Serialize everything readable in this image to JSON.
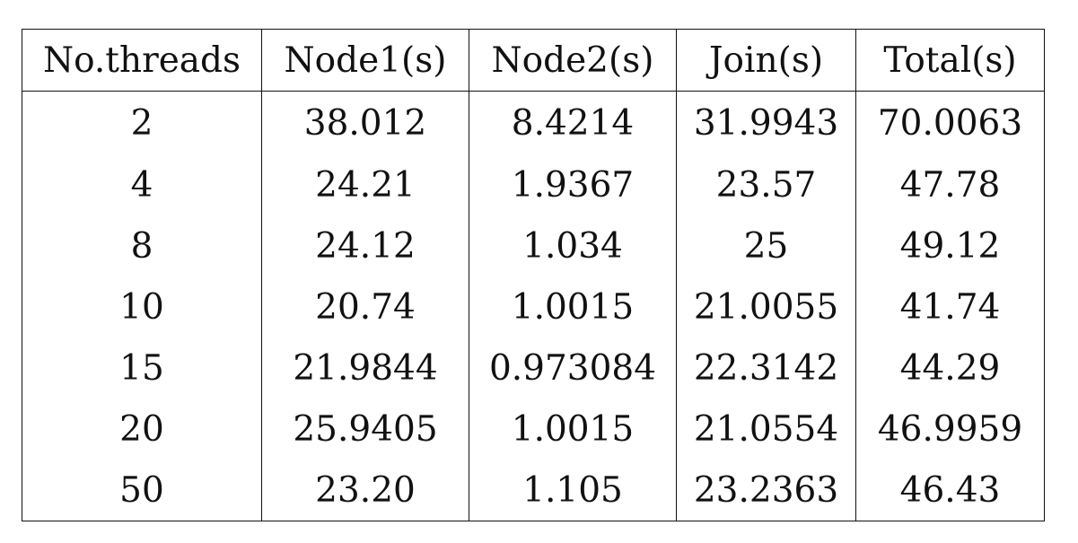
{
  "table": {
    "headers": [
      "No.threads",
      "Node1(s)",
      "Node2(s)",
      "Join(s)",
      "Total(s)"
    ],
    "rows": [
      [
        "2",
        "38.012",
        "8.4214",
        "31.9943",
        "70.0063"
      ],
      [
        "4",
        "24.21",
        "1.9367",
        "23.57",
        "47.78"
      ],
      [
        "8",
        "24.12",
        "1.034",
        "25",
        "49.12"
      ],
      [
        "10",
        "20.74",
        "1.0015",
        "21.0055",
        "41.74"
      ],
      [
        "15",
        "21.9844",
        "0.973084",
        "22.3142",
        "44.29"
      ],
      [
        "20",
        "25.9405",
        "1.0015",
        "21.0554",
        "46.9959"
      ],
      [
        "50",
        "23.20",
        "1.105",
        "23.2363",
        "46.43"
      ]
    ]
  }
}
